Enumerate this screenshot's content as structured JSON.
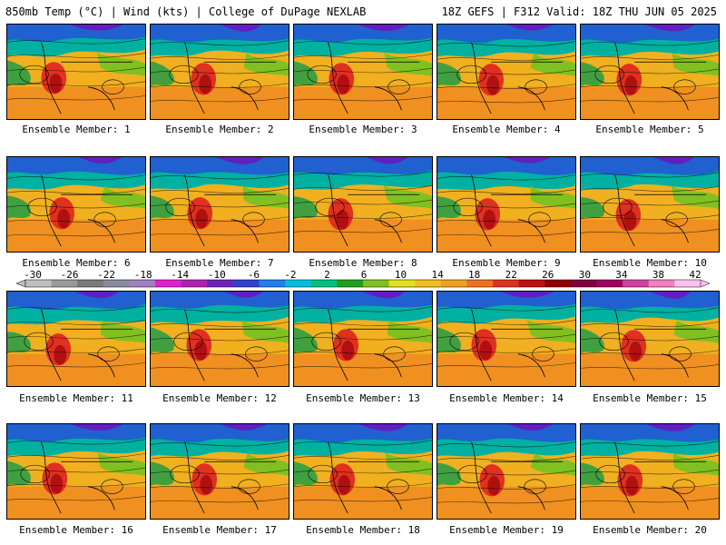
{
  "header": {
    "left_title": "850mb Temp (°C) | Wind (kts) | College of DuPage NEXLAB",
    "right_title": "18Z GEFS | F312 Valid: 18Z THU JUN 05 2025"
  },
  "colorbar": {
    "tick_labels": [
      "-30",
      "-26",
      "-22",
      "-18",
      "-14",
      "-10",
      "-6",
      "-2",
      "2",
      "6",
      "10",
      "14",
      "18",
      "22",
      "26",
      "30",
      "34",
      "38",
      "42"
    ],
    "colors": [
      "#bfbfbf",
      "#9a9a9a",
      "#7a7a7a",
      "#8a8aa0",
      "#a080c0",
      "#e020d0",
      "#b020b0",
      "#7020c0",
      "#3040d0",
      "#2080f0",
      "#00c0e0",
      "#00c080",
      "#20a020",
      "#80c020",
      "#e0e020",
      "#f0c020",
      "#f0a020",
      "#f07020",
      "#e03020",
      "#c01010",
      "#900000",
      "#800040",
      "#a00060",
      "#d040a0",
      "#f080c0",
      "#ffc0f0"
    ]
  },
  "panels": [
    {
      "caption": "Ensemble Member: 1"
    },
    {
      "caption": "Ensemble Member: 2"
    },
    {
      "caption": "Ensemble Member: 3"
    },
    {
      "caption": "Ensemble Member: 4"
    },
    {
      "caption": "Ensemble Member: 5"
    },
    {
      "caption": "Ensemble Member: 6"
    },
    {
      "caption": "Ensemble Member: 7"
    },
    {
      "caption": "Ensemble Member: 8"
    },
    {
      "caption": "Ensemble Member: 9"
    },
    {
      "caption": "Ensemble Member: 10"
    },
    {
      "caption": "Ensemble Member: 11"
    },
    {
      "caption": "Ensemble Member: 12"
    },
    {
      "caption": "Ensemble Member: 13"
    },
    {
      "caption": "Ensemble Member: 14"
    },
    {
      "caption": "Ensemble Member: 15"
    },
    {
      "caption": "Ensemble Member: 16"
    },
    {
      "caption": "Ensemble Member: 17"
    },
    {
      "caption": "Ensemble Member: 18"
    },
    {
      "caption": "Ensemble Member: 19"
    },
    {
      "caption": "Ensemble Member: 20"
    }
  ]
}
